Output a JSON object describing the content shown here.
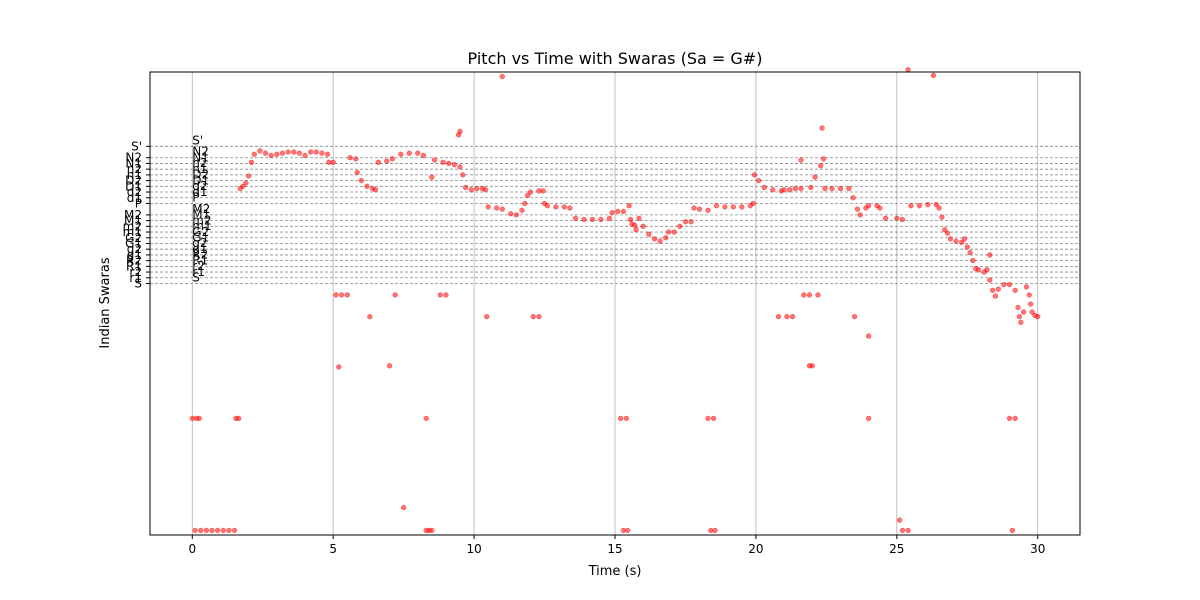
{
  "chart_data": {
    "type": "scatter",
    "title": "Pitch vs Time with Swaras (Sa = G#)",
    "xlabel": "Time (s)",
    "ylabel": "Indian Swaras",
    "xlim": [
      -1.5,
      31.5
    ],
    "x_ticks": [
      0,
      5,
      10,
      15,
      20,
      25,
      30
    ],
    "y_units": "semitones above Sa (G#)",
    "ylim": [
      -22.0,
      18.5
    ],
    "grid": {
      "x": true,
      "y": false
    },
    "colors": {
      "points": "#ff0000",
      "swara_lines": "#888888",
      "grid": "#b0b0b0"
    },
    "swara_lines": [
      {
        "label": "S",
        "semitone": 0
      },
      {
        "label": "r1",
        "semitone": 0.5
      },
      {
        "label": "r2",
        "semitone": 1
      },
      {
        "label": "R1",
        "semitone": 1.5
      },
      {
        "label": "R2",
        "semitone": 2
      },
      {
        "label": "g1",
        "semitone": 2.5
      },
      {
        "label": "g2",
        "semitone": 3
      },
      {
        "label": "G1",
        "semitone": 3.5
      },
      {
        "label": "G2",
        "semitone": 4
      },
      {
        "label": "m1",
        "semitone": 4.5
      },
      {
        "label": "m2",
        "semitone": 5
      },
      {
        "label": "M1",
        "semitone": 5.5
      },
      {
        "label": "M2",
        "semitone": 6
      },
      {
        "label": "P",
        "semitone": 7
      },
      {
        "label": "d1",
        "semitone": 7.5
      },
      {
        "label": "d2",
        "semitone": 8
      },
      {
        "label": "D1",
        "semitone": 8.5
      },
      {
        "label": "D2",
        "semitone": 9
      },
      {
        "label": "n1",
        "semitone": 9.5
      },
      {
        "label": "n2",
        "semitone": 10
      },
      {
        "label": "N1",
        "semitone": 10.5
      },
      {
        "label": "N2",
        "semitone": 11
      },
      {
        "label": "S'",
        "semitone": 12
      }
    ],
    "y_tick_labels": [
      "S'",
      "N2",
      "N1",
      "n2",
      "n1",
      "D2",
      "D1",
      "d2",
      "d1",
      "P",
      "M2",
      "M1",
      "m2",
      "m1",
      "G2",
      "G1",
      "g2",
      "g1",
      "R2",
      "R1",
      "r2",
      "r1",
      "S"
    ],
    "series": [
      {
        "points": [
          [
            0.0,
            -11.8
          ],
          [
            0.15,
            -11.8
          ],
          [
            0.25,
            -11.8
          ],
          [
            0.1,
            -21.6
          ],
          [
            0.3,
            -21.6
          ],
          [
            0.5,
            -21.6
          ],
          [
            0.7,
            -21.6
          ],
          [
            0.9,
            -21.6
          ],
          [
            1.1,
            -21.6
          ],
          [
            1.3,
            -21.6
          ],
          [
            1.5,
            -21.6
          ],
          [
            1.55,
            -11.8
          ],
          [
            1.65,
            -11.8
          ],
          [
            1.7,
            8.3
          ],
          [
            1.8,
            8.5
          ],
          [
            1.9,
            8.8
          ],
          [
            2.0,
            9.4
          ],
          [
            2.1,
            10.6
          ],
          [
            2.2,
            11.3
          ],
          [
            2.4,
            11.6
          ],
          [
            2.6,
            11.4
          ],
          [
            2.8,
            11.2
          ],
          [
            3.0,
            11.3
          ],
          [
            3.2,
            11.4
          ],
          [
            3.4,
            11.5
          ],
          [
            3.6,
            11.5
          ],
          [
            3.8,
            11.4
          ],
          [
            4.0,
            11.2
          ],
          [
            4.2,
            11.5
          ],
          [
            4.4,
            11.5
          ],
          [
            4.6,
            11.4
          ],
          [
            4.8,
            11.3
          ],
          [
            4.85,
            10.6
          ],
          [
            5.0,
            10.6
          ],
          [
            5.1,
            -1.0
          ],
          [
            5.3,
            -1.0
          ],
          [
            5.5,
            -1.0
          ],
          [
            5.2,
            -7.3
          ],
          [
            5.6,
            11.0
          ],
          [
            5.8,
            10.9
          ],
          [
            5.85,
            9.7
          ],
          [
            6.0,
            9.0
          ],
          [
            6.2,
            8.5
          ],
          [
            6.4,
            8.3
          ],
          [
            6.5,
            8.2
          ],
          [
            6.3,
            -2.9
          ],
          [
            6.6,
            10.6
          ],
          [
            6.9,
            10.7
          ],
          [
            7.0,
            -7.2
          ],
          [
            7.1,
            10.9
          ],
          [
            7.2,
            -1.0
          ],
          [
            7.4,
            11.3
          ],
          [
            7.7,
            11.4
          ],
          [
            8.0,
            11.4
          ],
          [
            8.2,
            11.2
          ],
          [
            8.3,
            -11.8
          ],
          [
            8.4,
            -21.6
          ],
          [
            8.3,
            -21.6
          ],
          [
            8.5,
            -21.6
          ],
          [
            7.5,
            -19.6
          ],
          [
            8.5,
            9.3
          ],
          [
            8.6,
            10.8
          ],
          [
            8.8,
            -1.0
          ],
          [
            9.0,
            -1.0
          ],
          [
            8.9,
            10.6
          ],
          [
            9.1,
            10.5
          ],
          [
            9.3,
            10.4
          ],
          [
            9.5,
            10.2
          ],
          [
            9.45,
            13.0
          ],
          [
            9.5,
            13.3
          ],
          [
            9.6,
            9.5
          ],
          [
            9.7,
            8.4
          ],
          [
            9.9,
            8.2
          ],
          [
            10.1,
            8.3
          ],
          [
            10.3,
            8.3
          ],
          [
            10.4,
            8.2
          ],
          [
            10.45,
            -2.9
          ],
          [
            10.5,
            6.7
          ],
          [
            10.8,
            6.6
          ],
          [
            11.0,
            6.5
          ],
          [
            11.0,
            18.1
          ],
          [
            11.3,
            6.1
          ],
          [
            11.5,
            6.0
          ],
          [
            11.7,
            6.4
          ],
          [
            11.8,
            7.0
          ],
          [
            11.9,
            7.7
          ],
          [
            12.0,
            8.0
          ],
          [
            12.3,
            8.1
          ],
          [
            12.1,
            -2.9
          ],
          [
            12.3,
            -2.9
          ],
          [
            12.45,
            8.1
          ],
          [
            12.5,
            7.0
          ],
          [
            12.6,
            6.8
          ],
          [
            12.9,
            6.7
          ],
          [
            13.2,
            6.7
          ],
          [
            13.4,
            6.6
          ],
          [
            13.6,
            5.7
          ],
          [
            13.9,
            5.6
          ],
          [
            14.2,
            5.6
          ],
          [
            14.5,
            5.6
          ],
          [
            14.8,
            5.7
          ],
          [
            14.9,
            6.2
          ],
          [
            15.1,
            6.3
          ],
          [
            15.3,
            6.3
          ],
          [
            15.2,
            -11.8
          ],
          [
            15.4,
            -11.8
          ],
          [
            15.3,
            -21.6
          ],
          [
            15.45,
            -21.6
          ],
          [
            15.5,
            6.8
          ],
          [
            15.55,
            5.6
          ],
          [
            15.6,
            5.2
          ],
          [
            15.7,
            5.1
          ],
          [
            15.75,
            4.7
          ],
          [
            15.85,
            5.7
          ],
          [
            16.0,
            5.0
          ],
          [
            16.2,
            4.3
          ],
          [
            16.4,
            3.9
          ],
          [
            16.6,
            3.7
          ],
          [
            16.8,
            4.0
          ],
          [
            16.9,
            4.5
          ],
          [
            17.1,
            4.5
          ],
          [
            17.3,
            5.0
          ],
          [
            17.5,
            5.4
          ],
          [
            17.7,
            5.4
          ],
          [
            17.8,
            6.6
          ],
          [
            18.0,
            6.5
          ],
          [
            18.3,
            6.4
          ],
          [
            18.3,
            -11.8
          ],
          [
            18.5,
            -11.8
          ],
          [
            18.4,
            -21.6
          ],
          [
            18.55,
            -21.6
          ],
          [
            18.6,
            6.8
          ],
          [
            18.9,
            6.7
          ],
          [
            19.2,
            6.7
          ],
          [
            19.5,
            6.7
          ],
          [
            19.8,
            6.8
          ],
          [
            19.9,
            7.0
          ],
          [
            19.95,
            9.5
          ],
          [
            20.1,
            9.0
          ],
          [
            20.3,
            8.4
          ],
          [
            20.6,
            8.2
          ],
          [
            20.9,
            8.1
          ],
          [
            21.0,
            8.2
          ],
          [
            21.2,
            8.2
          ],
          [
            21.4,
            8.3
          ],
          [
            21.6,
            8.3
          ],
          [
            21.6,
            10.8
          ],
          [
            20.8,
            -2.9
          ],
          [
            21.1,
            -2.9
          ],
          [
            21.3,
            -2.9
          ],
          [
            21.7,
            -1.0
          ],
          [
            21.9,
            -1.0
          ],
          [
            22.2,
            -1.0
          ],
          [
            22.0,
            -7.2
          ],
          [
            21.9,
            -7.2
          ],
          [
            21.95,
            8.4
          ],
          [
            22.1,
            9.3
          ],
          [
            22.3,
            10.3
          ],
          [
            22.4,
            10.9
          ],
          [
            22.35,
            13.6
          ],
          [
            22.45,
            8.3
          ],
          [
            22.7,
            8.3
          ],
          [
            23.0,
            8.3
          ],
          [
            23.3,
            8.3
          ],
          [
            23.45,
            7.5
          ],
          [
            23.5,
            -2.9
          ],
          [
            23.6,
            6.5
          ],
          [
            23.7,
            6.0
          ],
          [
            23.9,
            6.6
          ],
          [
            24.0,
            6.8
          ],
          [
            24.3,
            6.8
          ],
          [
            24.0,
            -11.8
          ],
          [
            24.0,
            -4.6
          ],
          [
            24.4,
            6.6
          ],
          [
            24.6,
            5.7
          ],
          [
            25.0,
            5.7
          ],
          [
            25.2,
            5.6
          ],
          [
            25.1,
            -20.7
          ],
          [
            25.2,
            -21.6
          ],
          [
            25.4,
            -21.6
          ],
          [
            25.4,
            18.7
          ],
          [
            25.5,
            6.8
          ],
          [
            25.8,
            6.8
          ],
          [
            26.1,
            6.9
          ],
          [
            26.4,
            6.9
          ],
          [
            26.3,
            18.2
          ],
          [
            26.5,
            6.6
          ],
          [
            26.6,
            5.8
          ],
          [
            26.7,
            4.7
          ],
          [
            26.8,
            4.4
          ],
          [
            26.9,
            3.9
          ],
          [
            27.1,
            3.7
          ],
          [
            27.3,
            3.6
          ],
          [
            27.4,
            3.9
          ],
          [
            27.5,
            3.2
          ],
          [
            27.6,
            2.7
          ],
          [
            27.7,
            2.0
          ],
          [
            27.8,
            1.3
          ],
          [
            27.9,
            1.2
          ],
          [
            28.1,
            1.0
          ],
          [
            28.2,
            1.2
          ],
          [
            28.3,
            2.5
          ],
          [
            28.3,
            0.3
          ],
          [
            28.4,
            -0.6
          ],
          [
            28.5,
            -1.1
          ],
          [
            28.6,
            -0.5
          ],
          [
            28.8,
            -0.1
          ],
          [
            29.0,
            -0.1
          ],
          [
            29.0,
            -11.8
          ],
          [
            29.2,
            -11.8
          ],
          [
            29.1,
            -21.6
          ],
          [
            29.2,
            -0.6
          ],
          [
            29.3,
            -2.1
          ],
          [
            29.35,
            -2.9
          ],
          [
            29.4,
            -3.4
          ],
          [
            29.5,
            -2.5
          ],
          [
            29.6,
            -0.3
          ],
          [
            29.7,
            -1.0
          ],
          [
            29.75,
            -1.8
          ],
          [
            29.8,
            -2.5
          ],
          [
            29.9,
            -2.8
          ],
          [
            30.0,
            -2.9
          ]
        ]
      }
    ]
  }
}
